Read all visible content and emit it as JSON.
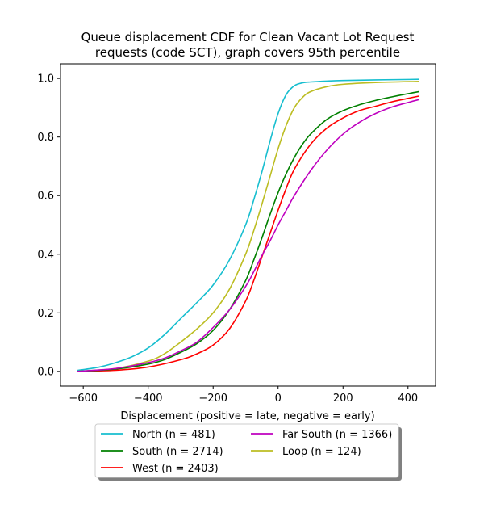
{
  "chart_data": {
    "type": "line",
    "title_lines": [
      "Queue displacement CDF for Clean Vacant Lot Request",
      "requests (code SCT), graph covers 95th percentile"
    ],
    "xlabel": "Displacement (positive = late, negative = early)",
    "ylabel": "",
    "xlim": [
      -670,
      485
    ],
    "ylim": [
      -0.05,
      1.05
    ],
    "xticks": [
      -600,
      -400,
      -200,
      0,
      200,
      400
    ],
    "yticks": [
      0.0,
      0.2,
      0.4,
      0.6,
      0.8,
      1.0
    ],
    "xtick_labels": [
      "−600",
      "−400",
      "−200",
      "0",
      "200",
      "400"
    ],
    "ytick_labels": [
      "0.0",
      "0.2",
      "0.4",
      "0.6",
      "0.8",
      "1.0"
    ],
    "grid": false,
    "legend_position": "below-center",
    "series": [
      {
        "name": "North (n = 481)",
        "color": "#17becf",
        "x": [
          -620,
          -550,
          -500,
          -450,
          -400,
          -350,
          -300,
          -250,
          -200,
          -150,
          -100,
          -75,
          -50,
          -25,
          0,
          25,
          50,
          75,
          100,
          150,
          200,
          300,
          435
        ],
        "y": [
          0.003,
          0.015,
          0.03,
          0.05,
          0.08,
          0.125,
          0.18,
          0.235,
          0.295,
          0.38,
          0.5,
          0.585,
          0.68,
          0.785,
          0.88,
          0.945,
          0.975,
          0.985,
          0.988,
          0.991,
          0.993,
          0.995,
          0.997
        ]
      },
      {
        "name": "West (n = 2403)",
        "color": "#ff0000",
        "x": [
          -620,
          -500,
          -400,
          -300,
          -250,
          -200,
          -150,
          -100,
          -75,
          -50,
          -25,
          0,
          25,
          50,
          100,
          150,
          200,
          250,
          300,
          350,
          400,
          435
        ],
        "y": [
          0.0,
          0.004,
          0.015,
          0.04,
          0.06,
          0.09,
          0.145,
          0.24,
          0.31,
          0.39,
          0.47,
          0.55,
          0.625,
          0.69,
          0.775,
          0.83,
          0.865,
          0.89,
          0.905,
          0.92,
          0.932,
          0.94
        ]
      },
      {
        "name": "Loop (n = 124)",
        "color": "#bcbd22",
        "x": [
          -620,
          -500,
          -400,
          -350,
          -300,
          -250,
          -200,
          -150,
          -100,
          -75,
          -50,
          -25,
          0,
          25,
          50,
          75,
          100,
          150,
          200,
          300,
          435
        ],
        "y": [
          0.0,
          0.01,
          0.035,
          0.06,
          0.1,
          0.145,
          0.2,
          0.28,
          0.4,
          0.48,
          0.57,
          0.665,
          0.76,
          0.84,
          0.9,
          0.935,
          0.955,
          0.972,
          0.98,
          0.986,
          0.99
        ]
      },
      {
        "name": "South (n = 2714)",
        "color": "#008000",
        "x": [
          -620,
          -500,
          -400,
          -350,
          -300,
          -250,
          -200,
          -150,
          -100,
          -75,
          -50,
          -25,
          0,
          25,
          50,
          75,
          100,
          150,
          200,
          250,
          300,
          350,
          400,
          435
        ],
        "y": [
          0.0,
          0.008,
          0.025,
          0.04,
          0.065,
          0.095,
          0.14,
          0.21,
          0.31,
          0.38,
          0.455,
          0.535,
          0.61,
          0.675,
          0.73,
          0.775,
          0.81,
          0.86,
          0.89,
          0.91,
          0.925,
          0.937,
          0.948,
          0.955
        ]
      },
      {
        "name": "Far South (n = 1366)",
        "color": "#bf00bf",
        "x": [
          -620,
          -500,
          -400,
          -350,
          -300,
          -250,
          -200,
          -150,
          -100,
          -75,
          -50,
          -25,
          0,
          25,
          50,
          100,
          150,
          200,
          250,
          300,
          350,
          400,
          435
        ],
        "y": [
          0.0,
          0.01,
          0.03,
          0.045,
          0.07,
          0.1,
          0.15,
          0.21,
          0.29,
          0.34,
          0.395,
          0.445,
          0.5,
          0.55,
          0.6,
          0.685,
          0.755,
          0.81,
          0.85,
          0.88,
          0.902,
          0.918,
          0.928
        ]
      }
    ],
    "legend_order": [
      0,
      3,
      1,
      4,
      2
    ]
  }
}
